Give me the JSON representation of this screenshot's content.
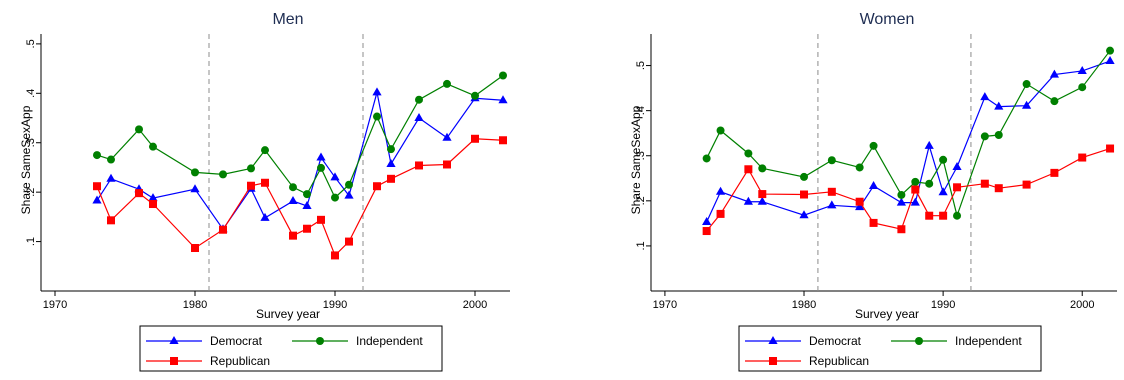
{
  "chart_data": [
    {
      "type": "line",
      "title": "Men",
      "xlabel": "Survey year",
      "ylabel": "Share SameSexApp",
      "xlim": [
        1969,
        2002.5
      ],
      "ylim": [
        0.0,
        0.52
      ],
      "xticks": [
        1970,
        1980,
        1990,
        2000
      ],
      "xtick_labels": [
        "1970",
        "1980",
        "1990",
        "2000"
      ],
      "yticks": [
        0.1,
        0.2,
        0.3,
        0.4,
        0.5
      ],
      "ytick_labels": [
        ".1",
        ".2",
        ".3",
        ".4",
        ".5"
      ],
      "vlines": [
        1981,
        1992
      ],
      "legend_position": "bottom",
      "series": [
        {
          "name": "Democrat",
          "color": "#0000ff",
          "marker": "triangle",
          "x": [
            1973,
            1974,
            1976,
            1977,
            1980,
            1982,
            1984,
            1985,
            1987,
            1988,
            1989,
            1990,
            1991,
            1993,
            1994,
            1996,
            1998,
            2000,
            2002
          ],
          "y": [
            0.183,
            0.227,
            0.206,
            0.188,
            0.206,
            0.125,
            0.207,
            0.148,
            0.182,
            0.172,
            0.27,
            0.23,
            0.193,
            0.402,
            0.257,
            0.35,
            0.31,
            0.39,
            0.386
          ]
        },
        {
          "name": "Independent",
          "color": "#008000",
          "marker": "circle",
          "x": [
            1973,
            1974,
            1976,
            1977,
            1980,
            1982,
            1984,
            1985,
            1987,
            1988,
            1989,
            1990,
            1991,
            1993,
            1994,
            1996,
            1998,
            2000,
            2002
          ],
          "y": [
            0.275,
            0.266,
            0.327,
            0.292,
            0.24,
            0.236,
            0.248,
            0.285,
            0.21,
            0.196,
            0.249,
            0.189,
            0.215,
            0.353,
            0.287,
            0.387,
            0.419,
            0.395,
            0.436
          ]
        },
        {
          "name": "Republican",
          "color": "#ff0000",
          "marker": "square",
          "x": [
            1973,
            1974,
            1976,
            1977,
            1980,
            1982,
            1984,
            1985,
            1987,
            1988,
            1989,
            1990,
            1991,
            1993,
            1994,
            1996,
            1998,
            2000,
            2002
          ],
          "y": [
            0.212,
            0.143,
            0.198,
            0.176,
            0.087,
            0.124,
            0.213,
            0.219,
            0.112,
            0.126,
            0.144,
            0.072,
            0.1,
            0.212,
            0.227,
            0.254,
            0.256,
            0.308,
            0.305
          ]
        }
      ]
    },
    {
      "type": "line",
      "title": "Women",
      "xlabel": "Survey year",
      "ylabel": "Share SameSexApp",
      "xlim": [
        1969,
        2002.5
      ],
      "ylim": [
        0.0,
        0.57
      ],
      "xticks": [
        1970,
        1980,
        1990,
        2000
      ],
      "xtick_labels": [
        "1970",
        "1980",
        "1990",
        "2000"
      ],
      "yticks": [
        0.1,
        0.2,
        0.3,
        0.4,
        0.5
      ],
      "ytick_labels": [
        ".1",
        ".2",
        ".3",
        ".4",
        ".5"
      ],
      "vlines": [
        1981,
        1992
      ],
      "legend_position": "bottom",
      "series": [
        {
          "name": "Democrat",
          "color": "#0000ff",
          "marker": "triangle",
          "x": [
            1973,
            1974,
            1976,
            1977,
            1980,
            1982,
            1984,
            1985,
            1987,
            1988,
            1989,
            1990,
            1991,
            1993,
            1994,
            1996,
            1998,
            2000,
            2002
          ],
          "y": [
            0.153,
            0.22,
            0.198,
            0.198,
            0.168,
            0.19,
            0.186,
            0.233,
            0.196,
            0.196,
            0.322,
            0.219,
            0.275,
            0.43,
            0.409,
            0.411,
            0.48,
            0.488,
            0.51
          ]
        },
        {
          "name": "Independent",
          "color": "#008000",
          "marker": "circle",
          "x": [
            1973,
            1974,
            1976,
            1977,
            1980,
            1982,
            1984,
            1985,
            1987,
            1988,
            1989,
            1990,
            1991,
            1993,
            1994,
            1996,
            1998,
            2000,
            2002
          ],
          "y": [
            0.294,
            0.356,
            0.305,
            0.272,
            0.253,
            0.29,
            0.274,
            0.322,
            0.213,
            0.242,
            0.238,
            0.291,
            0.167,
            0.343,
            0.346,
            0.459,
            0.421,
            0.452,
            0.533
          ]
        },
        {
          "name": "Republican",
          "color": "#ff0000",
          "marker": "square",
          "x": [
            1973,
            1974,
            1976,
            1977,
            1980,
            1982,
            1984,
            1985,
            1987,
            1988,
            1989,
            1990,
            1991,
            1993,
            1994,
            1996,
            1998,
            2000,
            2002
          ],
          "y": [
            0.133,
            0.171,
            0.27,
            0.215,
            0.214,
            0.22,
            0.198,
            0.151,
            0.137,
            0.225,
            0.167,
            0.167,
            0.23,
            0.238,
            0.228,
            0.236,
            0.262,
            0.296,
            0.316
          ]
        }
      ]
    }
  ]
}
